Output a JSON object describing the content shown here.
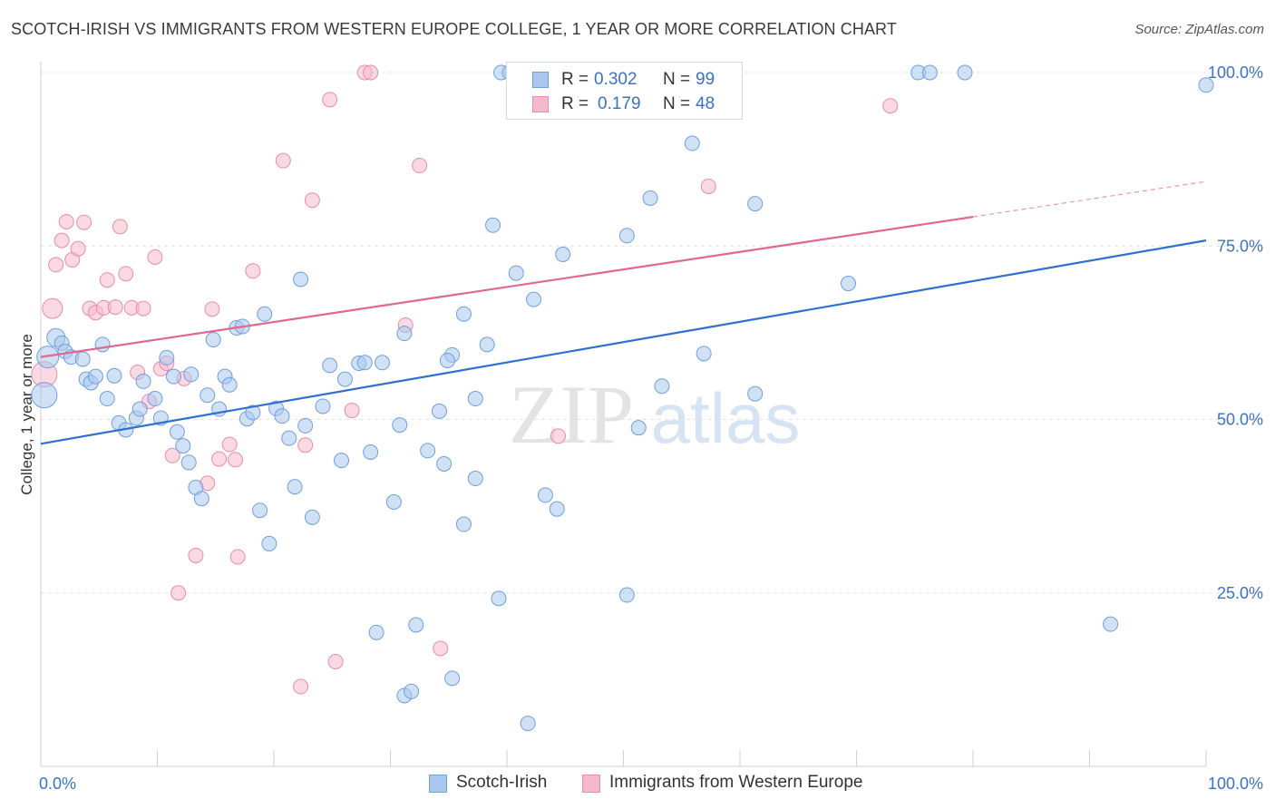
{
  "title": "SCOTCH-IRISH VS IMMIGRANTS FROM WESTERN EUROPE COLLEGE, 1 YEAR OR MORE CORRELATION CHART",
  "source": "Source: ZipAtlas.com",
  "watermark": {
    "zip": "ZIP",
    "atlas": "atlas"
  },
  "legend": {
    "rows": [
      {
        "r_label": "R =",
        "r_value": "0.302",
        "n_label": "N =",
        "n_value": "99"
      },
      {
        "r_label": "R =",
        "r_value": "0.179",
        "n_label": "N =",
        "n_value": "48"
      }
    ]
  },
  "bottom_legend": [
    "Scotch-Irish",
    "Immigrants from Western Europe"
  ],
  "colors": {
    "blue_fill": "#a9c8ef",
    "blue_stroke": "#6f9fdc",
    "blue_line": "#2f6fcf",
    "pink_fill": "#f5b9cb",
    "pink_stroke": "#e98ca9",
    "pink_line": "#e0678f",
    "tick_color": "#3b72c4",
    "grid": "#e2e2e2"
  },
  "chart_data": {
    "type": "scatter",
    "title": "SCOTCH-IRISH VS IMMIGRANTS FROM WESTERN EUROPE COLLEGE, 1 YEAR OR MORE CORRELATION CHART",
    "xlabel": "",
    "ylabel": "College, 1 year or more",
    "xlim": [
      0,
      100
    ],
    "ylim": [
      0,
      100
    ],
    "x_tick_labels": [
      "0.0%",
      "100.0%"
    ],
    "y_tick_labels": [
      "25.0%",
      "50.0%",
      "75.0%",
      "100.0%"
    ],
    "y_ticks": [
      25,
      50,
      75,
      100
    ],
    "grid": true,
    "series": [
      {
        "name": "Scotch-Irish",
        "r": 0.302,
        "n": 99,
        "trend": {
          "x": [
            0,
            100
          ],
          "y": [
            46.5,
            75.8
          ]
        },
        "points": [
          [
            0.3,
            53.5,
            14
          ],
          [
            0.6,
            59,
            12
          ],
          [
            1.3,
            61.8,
            10
          ],
          [
            1.8,
            61,
            8
          ],
          [
            2.1,
            59.8,
            8
          ],
          [
            2.6,
            59,
            8
          ],
          [
            3.6,
            58.7,
            8
          ],
          [
            3.9,
            55.8,
            8
          ],
          [
            4.3,
            55.3,
            8
          ],
          [
            4.7,
            56.2,
            8
          ],
          [
            5.3,
            60.8,
            8
          ],
          [
            5.7,
            53,
            8
          ],
          [
            6.3,
            56.3,
            8
          ],
          [
            6.7,
            49.5,
            8
          ],
          [
            7.3,
            48.5,
            8
          ],
          [
            8.2,
            50.2,
            8
          ],
          [
            8.5,
            51.5,
            8
          ],
          [
            8.8,
            55.5,
            8
          ],
          [
            9.8,
            53,
            8
          ],
          [
            10.3,
            50.2,
            8
          ],
          [
            10.8,
            58.9,
            8
          ],
          [
            11.4,
            56.2,
            8
          ],
          [
            11.7,
            48.2,
            8
          ],
          [
            12.2,
            46.2,
            8
          ],
          [
            12.7,
            43.8,
            8
          ],
          [
            12.9,
            56.5,
            8
          ],
          [
            13.3,
            40.2,
            8
          ],
          [
            13.8,
            38.6,
            8
          ],
          [
            14.3,
            53.5,
            8
          ],
          [
            14.8,
            61.5,
            8
          ],
          [
            15.3,
            51.5,
            8
          ],
          [
            15.8,
            56.2,
            8
          ],
          [
            16.2,
            55,
            8
          ],
          [
            16.8,
            63.2,
            8
          ],
          [
            17.3,
            63.4,
            8
          ],
          [
            17.7,
            50.1,
            8
          ],
          [
            18.2,
            51,
            8
          ],
          [
            18.8,
            36.9,
            8
          ],
          [
            19.2,
            65.2,
            8
          ],
          [
            19.6,
            32.1,
            8
          ],
          [
            20.2,
            51.6,
            8
          ],
          [
            20.7,
            50.5,
            8
          ],
          [
            21.3,
            47.3,
            8
          ],
          [
            21.8,
            40.3,
            8
          ],
          [
            22.3,
            70.2,
            8
          ],
          [
            22.7,
            49.1,
            8
          ],
          [
            23.3,
            35.9,
            8
          ],
          [
            24.2,
            51.9,
            8
          ],
          [
            24.8,
            57.8,
            8
          ],
          [
            25.8,
            44.1,
            8
          ],
          [
            26.1,
            55.8,
            8
          ],
          [
            27.3,
            58.1,
            8
          ],
          [
            27.8,
            58.2,
            8
          ],
          [
            28.3,
            45.3,
            8
          ],
          [
            28.8,
            19.3,
            8
          ],
          [
            29.3,
            58.2,
            8
          ],
          [
            30.3,
            38.1,
            8
          ],
          [
            30.8,
            49.2,
            8
          ],
          [
            31.2,
            62.4,
            8
          ],
          [
            31.2,
            10.2,
            8
          ],
          [
            31.8,
            10.8,
            8
          ],
          [
            32.2,
            20.4,
            8
          ],
          [
            33.2,
            45.5,
            8
          ],
          [
            34.2,
            51.2,
            8
          ],
          [
            34.6,
            43.6,
            8
          ],
          [
            35.3,
            59.3,
            8
          ],
          [
            35.3,
            12.7,
            8
          ],
          [
            36.3,
            65.2,
            8
          ],
          [
            36.3,
            34.9,
            8
          ],
          [
            37.3,
            41.5,
            8
          ],
          [
            37.3,
            53,
            8
          ],
          [
            38.3,
            60.8,
            8
          ],
          [
            38.8,
            78,
            8
          ],
          [
            39.3,
            24.2,
            8
          ],
          [
            40.3,
            100,
            8
          ],
          [
            40.8,
            71.1,
            8
          ],
          [
            41.8,
            6.2,
            8
          ],
          [
            42.3,
            67.3,
            8
          ],
          [
            43.3,
            39.1,
            8
          ],
          [
            44.3,
            37.1,
            8
          ],
          [
            44.8,
            73.8,
            8
          ],
          [
            50.3,
            76.5,
            8
          ],
          [
            50.3,
            24.7,
            8
          ],
          [
            51.3,
            48.8,
            8
          ],
          [
            52.3,
            81.9,
            8
          ],
          [
            53.3,
            54.8,
            8
          ],
          [
            55.9,
            89.8,
            8
          ],
          [
            56.9,
            59.5,
            8
          ],
          [
            61.3,
            53.7,
            8
          ],
          [
            61.3,
            81.1,
            8
          ],
          [
            69.3,
            69.6,
            8
          ],
          [
            75.3,
            100,
            8
          ],
          [
            76.3,
            100,
            8
          ],
          [
            79.3,
            100,
            8
          ],
          [
            91.8,
            20.5,
            8
          ],
          [
            100,
            98.2,
            8
          ],
          [
            40.2,
            100,
            8
          ],
          [
            39.5,
            100,
            8
          ],
          [
            34.9,
            58.5,
            8
          ]
        ]
      },
      {
        "name": "Immigrants from Western Europe",
        "r": 0.179,
        "n": 48,
        "trend": {
          "x": [
            0,
            80
          ],
          "y": [
            59,
            79.2
          ]
        },
        "trend_extension": {
          "x": [
            80,
            100
          ],
          "y": [
            79.2,
            84.3
          ]
        },
        "points": [
          [
            0.3,
            56.5,
            14
          ],
          [
            1.0,
            66,
            11
          ],
          [
            1.3,
            72.3,
            8
          ],
          [
            1.8,
            75.8,
            8
          ],
          [
            2.2,
            78.5,
            8
          ],
          [
            2.7,
            73,
            8
          ],
          [
            3.2,
            74.6,
            8
          ],
          [
            3.7,
            78.4,
            8
          ],
          [
            4.2,
            66,
            8
          ],
          [
            4.7,
            65.4,
            8
          ],
          [
            5.4,
            66.1,
            8
          ],
          [
            5.7,
            70.1,
            8
          ],
          [
            6.4,
            66.2,
            8
          ],
          [
            6.8,
            77.8,
            8
          ],
          [
            7.3,
            71,
            8
          ],
          [
            7.8,
            66.1,
            8
          ],
          [
            8.3,
            56.8,
            8
          ],
          [
            8.8,
            66,
            8
          ],
          [
            9.3,
            52.6,
            8
          ],
          [
            9.8,
            73.4,
            8
          ],
          [
            10.3,
            57.3,
            8
          ],
          [
            10.8,
            58.1,
            8
          ],
          [
            11.3,
            44.8,
            8
          ],
          [
            11.8,
            25,
            8
          ],
          [
            12.3,
            55.9,
            8
          ],
          [
            13.3,
            30.4,
            8
          ],
          [
            14.3,
            40.8,
            8
          ],
          [
            14.7,
            65.9,
            8
          ],
          [
            15.3,
            44.3,
            8
          ],
          [
            16.2,
            46.4,
            8
          ],
          [
            16.7,
            44.2,
            8
          ],
          [
            16.9,
            30.2,
            8
          ],
          [
            18.2,
            71.4,
            8
          ],
          [
            20.8,
            87.3,
            8
          ],
          [
            22.7,
            46.3,
            8
          ],
          [
            23.3,
            81.6,
            8
          ],
          [
            24.8,
            96.1,
            8
          ],
          [
            25.3,
            15.1,
            8
          ],
          [
            26.7,
            51.3,
            8
          ],
          [
            27.8,
            100,
            8
          ],
          [
            28.3,
            100,
            8
          ],
          [
            31.3,
            63.6,
            8
          ],
          [
            32.5,
            86.6,
            8
          ],
          [
            34.3,
            17,
            8
          ],
          [
            44.4,
            47.6,
            8
          ],
          [
            57.3,
            83.6,
            8
          ],
          [
            72.9,
            95.2,
            8
          ],
          [
            22.3,
            11.5,
            8
          ]
        ]
      }
    ]
  }
}
